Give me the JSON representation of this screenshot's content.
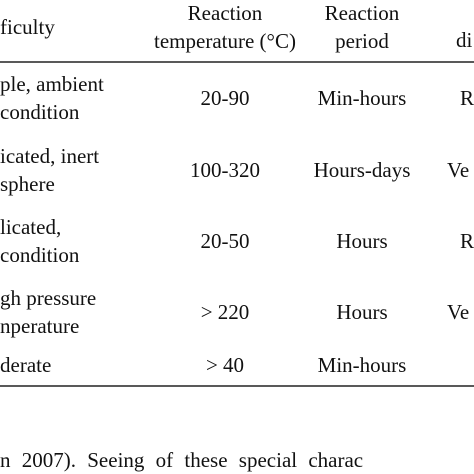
{
  "table": {
    "header": {
      "difficulty": "ficulty",
      "temperature": [
        "Reaction",
        "temperature (°C)"
      ],
      "period": [
        "Reaction",
        "period"
      ],
      "last": "di"
    },
    "rows": [
      {
        "difficulty": [
          "ple, ambient",
          "condition"
        ],
        "temperature": "20-90",
        "period": "Min-hours",
        "last": "R"
      },
      {
        "difficulty": [
          "icated, inert",
          "sphere"
        ],
        "temperature": "100-320",
        "period": "Hours-days",
        "last": "Ve"
      },
      {
        "difficulty": [
          "licated,",
          "condition"
        ],
        "temperature": "20-50",
        "period": "Hours",
        "last": "R"
      },
      {
        "difficulty": [
          "gh pressure",
          "nperature"
        ],
        "temperature": "> 220",
        "period": "Hours",
        "last": "Ve"
      },
      {
        "difficulty": [
          "derate"
        ],
        "temperature": "> 40",
        "period": "Min-hours"
      }
    ]
  },
  "paragraph": "n 2007). Seeing of these special charac"
}
